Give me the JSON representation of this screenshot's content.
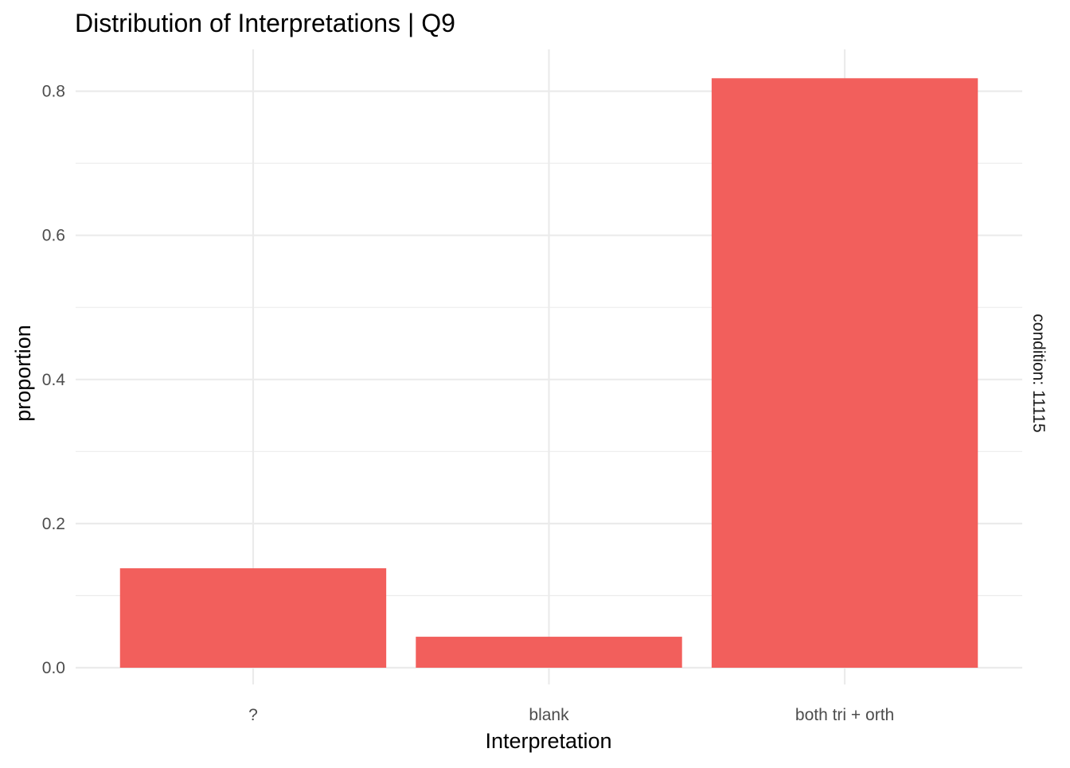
{
  "chart_data": {
    "type": "bar",
    "title": "Distribution of Interpretations | Q9",
    "xlabel": "Interpretation",
    "ylabel": "proportion",
    "facet_label": "condition: 11115",
    "categories": [
      "?",
      "blank",
      "both tri + orth"
    ],
    "values": [
      0.138,
      0.043,
      0.818
    ],
    "ylim": [
      0,
      0.85
    ],
    "yticks": [
      0.0,
      0.2,
      0.4,
      0.6,
      0.8
    ],
    "ytick_labels": [
      "0.0",
      "0.2",
      "0.4",
      "0.6",
      "0.8"
    ],
    "grid": true,
    "legend": "none",
    "bar_color": "#F25F5C",
    "grid_color": "#EBEBEB"
  }
}
